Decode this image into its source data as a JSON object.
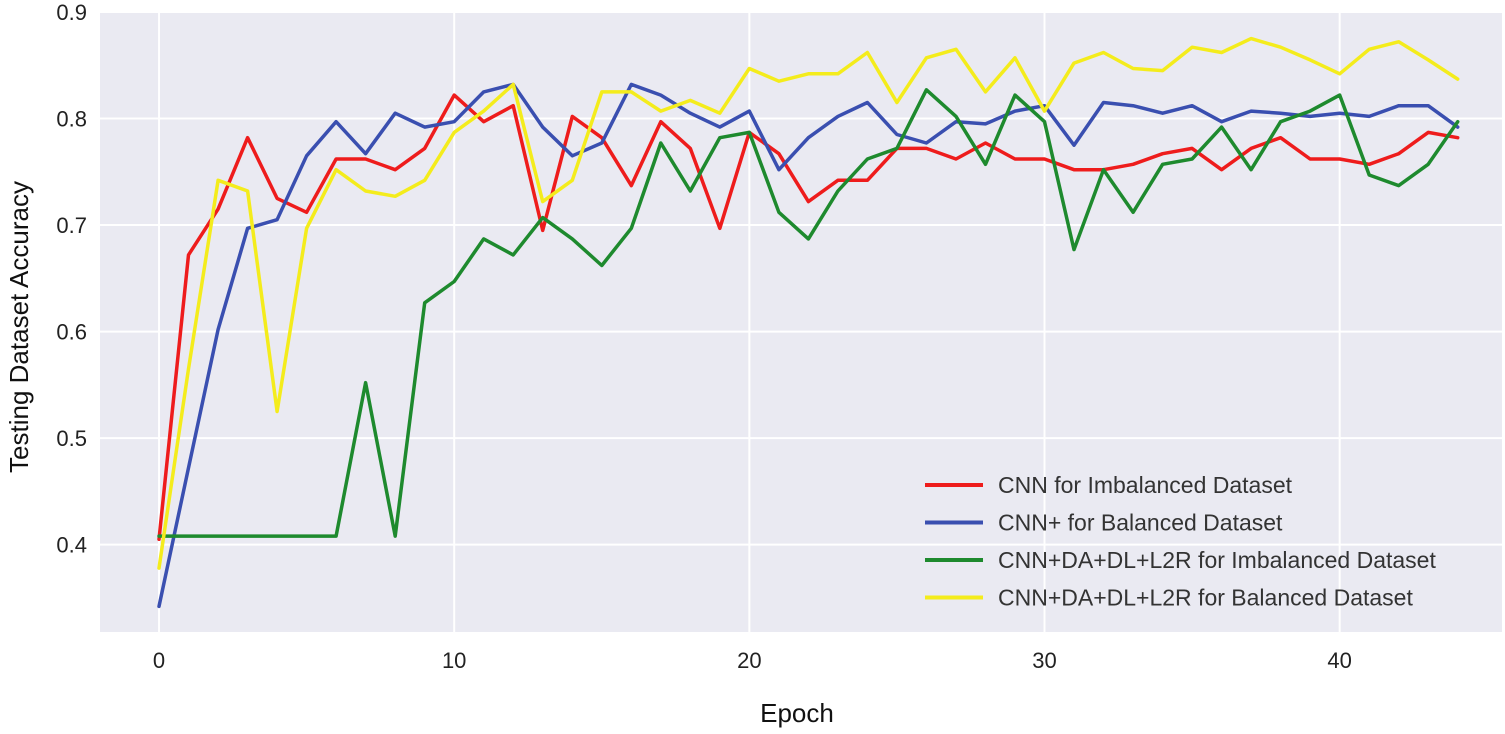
{
  "chart_data": {
    "type": "line",
    "xlabel": "Epoch",
    "ylabel": "Testing Dataset Accuracy",
    "xlim": [
      -2,
      45.5
    ],
    "ylim": [
      0.318,
      0.9
    ],
    "x_ticks": [
      0,
      10,
      20,
      30,
      40
    ],
    "y_ticks": [
      0.4,
      0.5,
      0.6,
      0.7,
      0.8,
      0.9
    ],
    "x_tick_labels": [
      "0",
      "10",
      "20",
      "30",
      "40"
    ],
    "y_tick_labels": [
      "0.4",
      "0.5",
      "0.6",
      "0.7",
      "0.8",
      "0.9"
    ],
    "grid": true,
    "legend_position": "lower-right",
    "x": [
      0,
      1,
      2,
      3,
      4,
      5,
      6,
      7,
      8,
      9,
      10,
      11,
      12,
      13,
      14,
      15,
      16,
      17,
      18,
      19,
      20,
      21,
      22,
      23,
      24,
      25,
      26,
      27,
      28,
      29,
      30,
      31,
      32,
      33,
      34,
      35,
      36,
      37,
      38,
      39,
      40,
      41,
      42,
      43,
      44
    ],
    "series": [
      {
        "name": "CNN for Imbalanced Dataset",
        "color": "#ee1c1c",
        "values": [
          0.405,
          0.672,
          0.715,
          0.782,
          0.725,
          0.712,
          0.762,
          0.762,
          0.752,
          0.772,
          0.822,
          0.797,
          0.812,
          0.695,
          0.802,
          0.782,
          0.737,
          0.797,
          0.772,
          0.697,
          0.787,
          0.767,
          0.722,
          0.742,
          0.742,
          0.772,
          0.772,
          0.762,
          0.777,
          0.762,
          0.762,
          0.752,
          0.752,
          0.757,
          0.767,
          0.772,
          0.752,
          0.772,
          0.782,
          0.762,
          0.762,
          0.757,
          0.767,
          0.787,
          0.782
        ]
      },
      {
        "name": "CNN+ for Balanced Dataset",
        "color": "#3a4fb0",
        "values": [
          0.342,
          0.472,
          0.602,
          0.697,
          0.705,
          0.765,
          0.797,
          0.767,
          0.805,
          0.792,
          0.797,
          0.825,
          0.832,
          0.792,
          0.765,
          0.777,
          0.832,
          0.822,
          0.805,
          0.792,
          0.807,
          0.752,
          0.782,
          0.802,
          0.815,
          0.785,
          0.777,
          0.797,
          0.795,
          0.807,
          0.812,
          0.775,
          0.815,
          0.812,
          0.805,
          0.812,
          0.797,
          0.807,
          0.805,
          0.802,
          0.805,
          0.802,
          0.812,
          0.812,
          0.792
        ]
      },
      {
        "name": "CNN+DA+DL+L2R for Imbalanced Dataset",
        "color": "#1e8a2e",
        "values": [
          0.408,
          0.408,
          0.408,
          0.408,
          0.408,
          0.408,
          0.408,
          0.552,
          0.408,
          0.627,
          0.647,
          0.687,
          0.672,
          0.707,
          0.687,
          0.662,
          0.697,
          0.777,
          0.732,
          0.782,
          0.787,
          0.712,
          0.687,
          0.732,
          0.762,
          0.772,
          0.827,
          0.802,
          0.757,
          0.822,
          0.797,
          0.677,
          0.752,
          0.712,
          0.757,
          0.762,
          0.792,
          0.752,
          0.797,
          0.807,
          0.822,
          0.747,
          0.737,
          0.757,
          0.797
        ]
      },
      {
        "name": "CNN+DA+DL+L2R for Balanced Dataset",
        "color": "#f4ec1c",
        "values": [
          0.378,
          0.565,
          0.742,
          0.732,
          0.525,
          0.697,
          0.752,
          0.732,
          0.727,
          0.742,
          0.787,
          0.807,
          0.832,
          0.722,
          0.742,
          0.825,
          0.825,
          0.807,
          0.817,
          0.805,
          0.847,
          0.835,
          0.842,
          0.842,
          0.862,
          0.815,
          0.857,
          0.865,
          0.825,
          0.857,
          0.807,
          0.852,
          0.862,
          0.847,
          0.845,
          0.867,
          0.862,
          0.875,
          0.867,
          0.855,
          0.842,
          0.865,
          0.872,
          0.855,
          0.837
        ]
      }
    ]
  },
  "style": {
    "plot_background": "#eaeaf2",
    "grid_color": "#ffffff",
    "page_background": "#ffffff"
  }
}
